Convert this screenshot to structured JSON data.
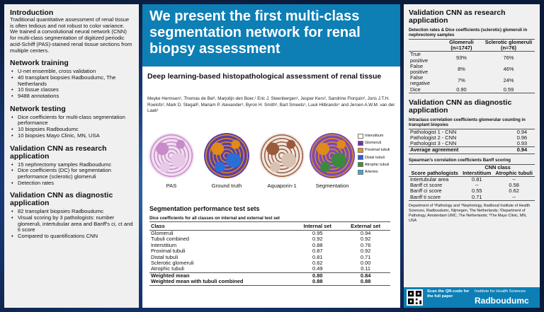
{
  "left": {
    "intro_title": "Introduction",
    "intro_text": "Traditional quantitative assessment of renal tissue is often tedious and not robust to color variance. We trained a convolutional neural network (CNN) for multi-class segmentation of digitized periodic acid-Schiff (PAS)-stained renal tissue sections from multiple centers.",
    "training_title": "Network training",
    "training_items": [
      "U-net ensemble, cross validation",
      "40 transplant biopsies Radboudumc, The Netherlands",
      "10 tissue classes",
      "9488 annotations"
    ],
    "testing_title": "Network testing",
    "testing_items": [
      "Dice coefficients for multi-class segmentation performance",
      "10 biopsies Radboudumc",
      "10 biopsies Mayo Clinic, MN, USA"
    ],
    "research_title": "Validation CNN as research application",
    "research_items": [
      "15 nephrectomy samples Radboudumc",
      "Dice coefficients  (DC) for segmentation performance (sclerotic) glomeruli",
      "Detection rates"
    ],
    "diag_title": "Validation CNN as diagnostic application",
    "diag_items": [
      "82 transplant biopsies Radboudumc",
      "Visual scoring by 3 pathologists: number glomeruli, intertubular area and Banff's ci, ct and ti score",
      "Compared to quantifications CNN"
    ]
  },
  "center": {
    "banner": "We present the first multi-class segmentation network for renal biopsy assessment",
    "subtitle": "Deep learning-based histopathological assessment of renal tissue",
    "authors": "Meyke Hermsen¹, Thomas de Bel¹, Marjolijn den Boer,¹ Eric J. Steenbergen¹, Jesper Kers², Sandrine Florquin², Joris J.T.H. Roelofs², Mark D. Stegall³, Mariam P. Alexander³, Byron H. Smith³, Bart Smeets¹, Luuk Hilbrands⁴ and Jeroen A.W.M. van der Laak¹",
    "images": [
      {
        "label": "PAS",
        "colors": [
          "#f1dff0",
          "#c88ac8",
          "#e7c8e6"
        ]
      },
      {
        "label": "Ground truth",
        "colors": [
          "#5b3ea8",
          "#e08a1a",
          "#2b6fd6"
        ]
      },
      {
        "label": "Aquaporin-1",
        "colors": [
          "#efe6e0",
          "#9a5a3c",
          "#d8c1b0"
        ]
      },
      {
        "label": "Segmentation",
        "colors": [
          "#7a4ab8",
          "#e08a1a",
          "#3c8a3c"
        ]
      }
    ],
    "legend": [
      {
        "label": "Interstitium",
        "color": "#ffffff"
      },
      {
        "label": "Glomeruli",
        "color": "#7a2ea6"
      },
      {
        "label": "Proximal tubuli",
        "color": "#e39428"
      },
      {
        "label": "Distal tubuli",
        "color": "#2f5fd0"
      },
      {
        "label": "Atrophic tubuli",
        "color": "#2f9a2f"
      },
      {
        "label": "Arteries",
        "color": "#3fa6d8"
      }
    ],
    "perf_title": "Segmentation performance test sets",
    "perf_caption": "Dice coefficients for all classes on internal and external test set",
    "perf_headers": [
      "Class",
      "Internal set",
      "External set"
    ],
    "perf_rows": [
      [
        "Glomeruli",
        "0.95",
        "0.94"
      ],
      [
        "Tubuli combined",
        "0.92",
        "0.92"
      ],
      [
        "Interstitium",
        "0.88",
        "0.76"
      ],
      [
        "Proximal tubuli",
        "0.87",
        "0.92"
      ],
      [
        "Distal tubuli",
        "0.81",
        "0.71"
      ],
      [
        "Sclerotic glomeruli",
        "0.62",
        "0.00"
      ],
      [
        "Atrophic tubuli",
        "0.49",
        "0.11"
      ]
    ],
    "perf_bold_rows": [
      [
        "Weighted mean",
        "0.80",
        "0.84"
      ],
      [
        "Weighted mean with tubuli combined",
        "0.88",
        "0.88"
      ]
    ]
  },
  "right": {
    "research_title": "Validation CNN as research application",
    "research_caption": "Detection rates & Dice coefficients (sclerotic) glomeruli in nephrectomy samples",
    "research_headers": [
      "",
      "Glomeruli (n=1747)",
      "Sclerotic glomeruli (n=76)"
    ],
    "research_rows": [
      [
        "True positive",
        "93%",
        "76%"
      ],
      [
        "False positive",
        "8%",
        "46%"
      ],
      [
        "False negative",
        "7%",
        "24%"
      ],
      [
        "Dice",
        "0.90",
        "0.59"
      ]
    ],
    "diag_title": "Validation CNN as diagnostic application",
    "icc_caption": "Intraclass correlation coefficients glomerular counting in transplant biopsies",
    "icc_rows": [
      [
        "Pathologist 1 - CNN",
        "0.94"
      ],
      [
        "Pathologist 2 - CNN",
        "0.96"
      ],
      [
        "Pathologist 3 - CNN",
        "0.93"
      ]
    ],
    "icc_avg": [
      "Average agreement",
      "0.94"
    ],
    "spear_caption": "Spearman's correlation coefficients Banff scoring",
    "spear_group": "CNN class",
    "spear_headers": [
      "Score pathologists",
      "Interstitium",
      "Atrophic tubuli"
    ],
    "spear_rows": [
      [
        "Intertubular area",
        "0.81",
        "--"
      ],
      [
        "Banff ct score",
        "--",
        "0.58"
      ],
      [
        "Banff ci score",
        "0.55",
        "0.62"
      ],
      [
        "Banff ti score",
        "0.71",
        "--"
      ]
    ],
    "credits": "Department of ¹Pathology and ⁴Nephrology, Radboud Institute of Health Sciences, Radboudumc, Nijmegen, The Netherlands; ²Department of Pathology, Amsterdam UMC, The Netherlands; ³The Mayo Clinic, MN, USA",
    "footer_qr_text": "Scan the QR-code for the full paper",
    "footer_institute": "Institute for Health Sciences",
    "footer_brand": "Radboudumc"
  }
}
